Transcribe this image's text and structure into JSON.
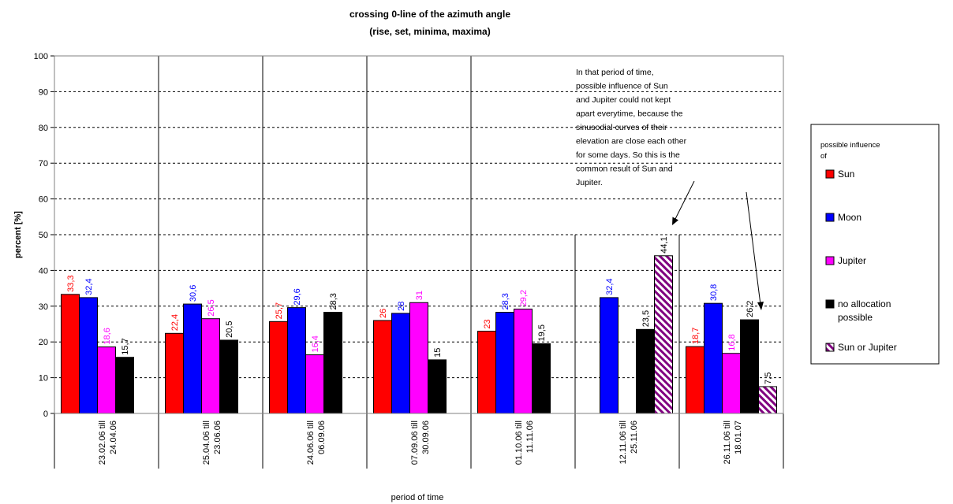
{
  "chart_data": {
    "type": "bar",
    "title": "crossing 0-line of the azimuth angle",
    "subtitle": "(rise, set, minima, maxima)",
    "xlabel": "period of time",
    "ylabel": "percent [%]",
    "ylim": [
      0,
      100
    ],
    "yticks": [
      "0",
      "10",
      "20",
      "30",
      "40",
      "50",
      "60",
      "70",
      "80",
      "90",
      "100"
    ],
    "grid": "dashed horizontal",
    "categories": [
      [
        "23.02.06 till",
        "24.04.06"
      ],
      [
        "25.04.06 till",
        "23.06.06"
      ],
      [
        "24.06.06 till",
        "06.09.06"
      ],
      [
        "07.09.06 till",
        "30.09.06"
      ],
      [
        "01.10.06 till",
        "11.11.06"
      ],
      [
        "12.11.06 till",
        "25.11.06"
      ],
      [
        "26.11.06 till",
        "18.01.07"
      ]
    ],
    "series": [
      {
        "name": "Sun",
        "color": "#ff0000",
        "label_color": "#ff0000",
        "values": [
          33.3,
          22.4,
          25.7,
          26,
          23,
          null,
          18.7
        ],
        "labels": [
          "33,3",
          "22,4",
          "25,7",
          "26",
          "23",
          null,
          "18,7"
        ]
      },
      {
        "name": "Moon",
        "color": "#0000ff",
        "label_color": "#0000ff",
        "values": [
          32.4,
          30.6,
          29.6,
          28,
          28.3,
          32.4,
          30.8
        ],
        "labels": [
          "32,4",
          "30,6",
          "29,6",
          "28",
          "28,3",
          "32,4",
          "30,8"
        ]
      },
      {
        "name": "Jupiter",
        "color": "#ff00ff",
        "label_color": "#ff00ff",
        "values": [
          18.6,
          26.5,
          16.4,
          31,
          29.2,
          null,
          16.8
        ],
        "labels": [
          "18,6",
          "26,5",
          "16,4",
          "31",
          "29,2",
          null,
          "16,8"
        ]
      },
      {
        "name": "no allocation possible",
        "legend_lines": [
          "no allocation",
          "possible"
        ],
        "color": "#000000",
        "label_color": "#000000",
        "values": [
          15.7,
          20.5,
          28.3,
          15,
          19.5,
          23.5,
          26.2
        ],
        "labels": [
          "15,7",
          "20,5",
          "28,3",
          "15",
          "19,5",
          "23,5",
          "26,2"
        ]
      },
      {
        "name": "Sun or Jupiter",
        "color": "#800080",
        "label_color": "#000000",
        "pattern": "hatched",
        "values": [
          null,
          null,
          null,
          null,
          null,
          44.1,
          7.5
        ],
        "labels": [
          null,
          null,
          null,
          null,
          null,
          "44,1",
          "7,5"
        ]
      }
    ],
    "legend": {
      "title_lines": [
        "possible influence",
        "of"
      ],
      "placement": "right"
    },
    "annotation": {
      "lines": [
        "In that period of time,",
        "possible influence of Sun",
        "and Jupiter could not kept",
        "apart everytime, because the",
        "sinusodial curves of their",
        "elevation are close each other",
        "for some days. So this is the",
        "common result of Sun and",
        "Jupiter."
      ]
    }
  }
}
